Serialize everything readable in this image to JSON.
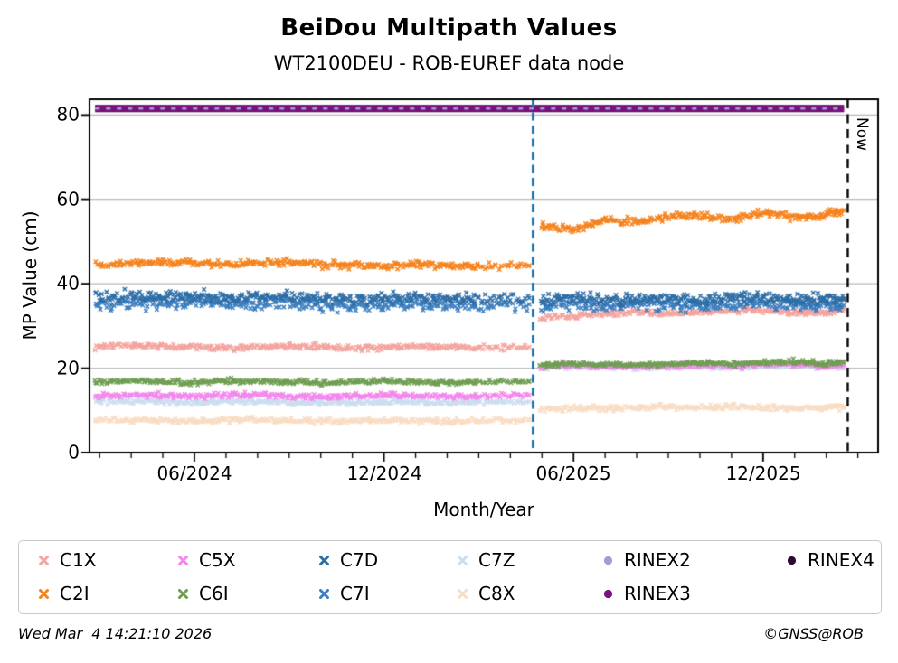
{
  "footer": {
    "timestamp": "Wed Mar  4 14:21:10 2026",
    "copyright": "©GNSS@ROB"
  },
  "chart_data": {
    "type": "scatter",
    "title": "BeiDou Multipath Values",
    "subtitle": "WT2100DEU - ROB-EUREF data node",
    "xlabel": "Month/Year",
    "ylabel": "MP Value (cm)",
    "xlim_decimal_years": [
      2024.14,
      2026.22
    ],
    "ylim": [
      0,
      83.7
    ],
    "grid": "horizontal-gray",
    "yticks": [
      0,
      20,
      40,
      60,
      80
    ],
    "xticks": [
      {
        "label": "06/2024",
        "x": 2024.417
      },
      {
        "label": "12/2024",
        "x": 2024.917
      },
      {
        "label": "06/2025",
        "x": 2025.417
      },
      {
        "label": "12/2025",
        "x": 2025.917
      }
    ],
    "minor_xticks": "monthly",
    "annotations": {
      "event_line": {
        "x": 2025.31,
        "style": "dashed",
        "color": "#1f77b4"
      },
      "now_line": {
        "x": 2026.14,
        "style": "dashed",
        "color": "#000000",
        "label": "Now"
      }
    },
    "series": [
      {
        "name": "C8X",
        "marker": "x",
        "color": "#f9dcc4",
        "spread": 0.65,
        "segments": [
          {
            "x": [
              2024.155,
              2024.25,
              2024.333,
              2024.417,
              2024.5,
              2024.583,
              2024.667,
              2024.75,
              2024.833,
              2024.917,
              2025.0,
              2025.083,
              2025.167,
              2025.3
            ],
            "y": [
              7.6,
              7.8,
              7.6,
              7.4,
              7.7,
              7.8,
              7.5,
              7.3,
              7.6,
              7.7,
              7.5,
              7.4,
              7.5,
              7.7
            ]
          },
          {
            "x": [
              2025.33,
              2025.417,
              2025.5,
              2025.583,
              2025.667,
              2025.75,
              2025.833,
              2025.917,
              2026.0,
              2026.07,
              2026.13
            ],
            "y": [
              10.3,
              10.6,
              10.4,
              10.6,
              10.9,
              10.6,
              10.8,
              10.6,
              10.4,
              10.7,
              10.9
            ]
          }
        ]
      },
      {
        "name": "C7Z",
        "marker": "x",
        "color": "#cbddf1",
        "spread": 0.6,
        "segments": [
          {
            "x": [
              2024.155,
              2024.25,
              2024.333,
              2024.417,
              2024.5,
              2024.583,
              2024.667,
              2024.75,
              2024.833,
              2024.917,
              2025.0,
              2025.083,
              2025.167,
              2025.3
            ],
            "y": [
              12.0,
              12.2,
              12.0,
              11.8,
              12.1,
              12.2,
              11.9,
              11.7,
              12.0,
              12.1,
              11.9,
              11.8,
              11.9,
              12.1
            ]
          },
          {
            "x": [
              2025.33,
              2025.417,
              2025.5,
              2025.583,
              2025.667,
              2025.75,
              2025.833,
              2025.917,
              2026.0,
              2026.07,
              2026.13
            ],
            "y": [
              20.1,
              20.4,
              20.2,
              20.0,
              20.3,
              20.4,
              20.1,
              20.5,
              20.7,
              20.3,
              20.5
            ]
          }
        ]
      },
      {
        "name": "C5X",
        "marker": "x",
        "color": "#f287ec",
        "spread": 0.6,
        "segments": [
          {
            "x": [
              2024.155,
              2024.25,
              2024.333,
              2024.417,
              2024.5,
              2024.583,
              2024.667,
              2024.75,
              2024.833,
              2024.917,
              2025.0,
              2025.083,
              2025.167,
              2025.3
            ],
            "y": [
              13.5,
              13.7,
              13.5,
              13.3,
              13.6,
              13.7,
              13.4,
              13.2,
              13.5,
              13.6,
              13.4,
              13.3,
              13.4,
              13.6
            ]
          },
          {
            "x": [
              2025.33,
              2025.417,
              2025.5,
              2025.583,
              2025.667,
              2025.75,
              2025.833,
              2025.917,
              2026.0,
              2026.07,
              2026.13
            ],
            "y": [
              20.4,
              20.7,
              20.5,
              20.3,
              20.6,
              20.7,
              20.4,
              20.8,
              21.0,
              20.6,
              20.8
            ]
          }
        ]
      },
      {
        "name": "C6I",
        "marker": "x",
        "color": "#6f9e52",
        "spread": 0.55,
        "segments": [
          {
            "x": [
              2024.155,
              2024.25,
              2024.333,
              2024.417,
              2024.5,
              2024.583,
              2024.667,
              2024.75,
              2024.833,
              2024.917,
              2025.0,
              2025.083,
              2025.167,
              2025.3
            ],
            "y": [
              16.8,
              17.0,
              16.8,
              16.6,
              16.9,
              17.0,
              16.7,
              16.5,
              16.8,
              16.9,
              16.7,
              16.6,
              16.7,
              16.9
            ]
          },
          {
            "x": [
              2025.33,
              2025.417,
              2025.5,
              2025.583,
              2025.667,
              2025.75,
              2025.833,
              2025.917,
              2026.0,
              2026.07,
              2026.13
            ],
            "y": [
              20.7,
              21.1,
              20.9,
              20.8,
              21.0,
              21.2,
              21.0,
              21.4,
              21.5,
              21.1,
              21.4
            ]
          }
        ]
      },
      {
        "name": "C1X",
        "marker": "x",
        "color": "#f4a49e",
        "spread": 0.65,
        "segments": [
          {
            "x": [
              2024.155,
              2024.25,
              2024.333,
              2024.417,
              2024.5,
              2024.583,
              2024.667,
              2024.75,
              2024.833,
              2024.917,
              2025.0,
              2025.083,
              2025.167,
              2025.3
            ],
            "y": [
              25.1,
              25.4,
              25.2,
              25.0,
              24.8,
              25.1,
              25.3,
              25.0,
              24.7,
              24.9,
              25.2,
              24.9,
              24.8,
              25.0
            ]
          },
          {
            "x": [
              2025.33,
              2025.417,
              2025.5,
              2025.583,
              2025.667,
              2025.75,
              2025.833,
              2025.917,
              2026.0,
              2026.07,
              2026.13
            ],
            "y": [
              31.8,
              32.4,
              32.9,
              33.3,
              32.8,
              33.2,
              33.8,
              33.6,
              33.3,
              33.1,
              34.0
            ]
          }
        ]
      },
      {
        "name": "C7I",
        "marker": "x",
        "color": "#3b7ec0",
        "spread": 1.4,
        "segments": [
          {
            "x": [
              2024.155,
              2024.25,
              2024.333,
              2024.417,
              2024.5,
              2024.583,
              2024.667,
              2024.75,
              2024.833,
              2024.917,
              2025.0,
              2025.083,
              2025.167,
              2025.3
            ],
            "y": [
              34.9,
              35.4,
              35.2,
              35.6,
              35.1,
              35.3,
              35.5,
              35.0,
              34.8,
              35.1,
              35.3,
              34.9,
              34.8,
              35.1
            ]
          },
          {
            "x": [
              2025.33,
              2025.417,
              2025.5,
              2025.583,
              2025.667,
              2025.75,
              2025.833,
              2025.917,
              2026.0,
              2026.07,
              2026.13
            ],
            "y": [
              34.8,
              35.1,
              34.6,
              34.9,
              35.1,
              34.7,
              35.0,
              35.3,
              34.8,
              34.6,
              34.9
            ]
          }
        ]
      },
      {
        "name": "C7D",
        "marker": "x",
        "color": "#2d6da6",
        "spread": 1.4,
        "segments": [
          {
            "x": [
              2024.155,
              2024.25,
              2024.333,
              2024.417,
              2024.5,
              2024.583,
              2024.667,
              2024.75,
              2024.833,
              2024.917,
              2025.0,
              2025.083,
              2025.167,
              2025.3
            ],
            "y": [
              36.4,
              36.9,
              36.7,
              37.1,
              36.6,
              36.8,
              37.0,
              36.5,
              36.3,
              36.6,
              36.8,
              36.4,
              36.3,
              36.6
            ]
          },
          {
            "x": [
              2025.33,
              2025.417,
              2025.5,
              2025.583,
              2025.667,
              2025.75,
              2025.833,
              2025.917,
              2026.0,
              2026.07,
              2026.13
            ],
            "y": [
              36.3,
              36.6,
              36.1,
              36.4,
              36.6,
              36.2,
              36.5,
              36.8,
              36.3,
              36.1,
              36.4
            ]
          }
        ]
      },
      {
        "name": "C2I",
        "marker": "x",
        "color": "#f5831d",
        "spread": 0.85,
        "segments": [
          {
            "x": [
              2024.155,
              2024.25,
              2024.333,
              2024.417,
              2024.5,
              2024.583,
              2024.667,
              2024.75,
              2024.833,
              2024.917,
              2025.0,
              2025.083,
              2025.167,
              2025.3
            ],
            "y": [
              44.4,
              44.9,
              45.2,
              44.8,
              44.6,
              44.9,
              45.1,
              44.6,
              44.3,
              44.2,
              44.6,
              44.3,
              44.1,
              44.3
            ]
          },
          {
            "x": [
              2025.33,
              2025.417,
              2025.5,
              2025.583,
              2025.667,
              2025.75,
              2025.833,
              2025.917,
              2026.0,
              2026.07,
              2026.13
            ],
            "y": [
              53.6,
              52.9,
              55.2,
              54.5,
              56.0,
              56.3,
              55.2,
              57.0,
              55.7,
              56.0,
              57.5
            ]
          }
        ]
      },
      {
        "name": "RINEX4",
        "marker": "circle",
        "color": "#2d0935",
        "type": "hline",
        "y": 81.5,
        "x_range": [
          2024.155,
          2026.13
        ],
        "lw": 8
      },
      {
        "name": "RINEX3",
        "marker": "circle",
        "color": "#7b117e",
        "type": "hline",
        "y": 81.5,
        "x_range": [
          2024.155,
          2026.13
        ],
        "lw": 7
      },
      {
        "name": "RINEX2",
        "marker": "circle",
        "color": "#a29dd5",
        "type": "hline",
        "y": 81.5,
        "x_range": [
          2024.155,
          2026.13
        ],
        "lw": 2.5,
        "dash": [
          5,
          7
        ]
      }
    ]
  },
  "legend": {
    "columns": [
      [
        "C1X",
        "C2I"
      ],
      [
        "C5X",
        "C6I"
      ],
      [
        "C7D",
        "C7I"
      ],
      [
        "C7Z",
        "C8X"
      ],
      [
        "RINEX2",
        "RINEX3"
      ],
      [
        "RINEX4"
      ]
    ]
  }
}
